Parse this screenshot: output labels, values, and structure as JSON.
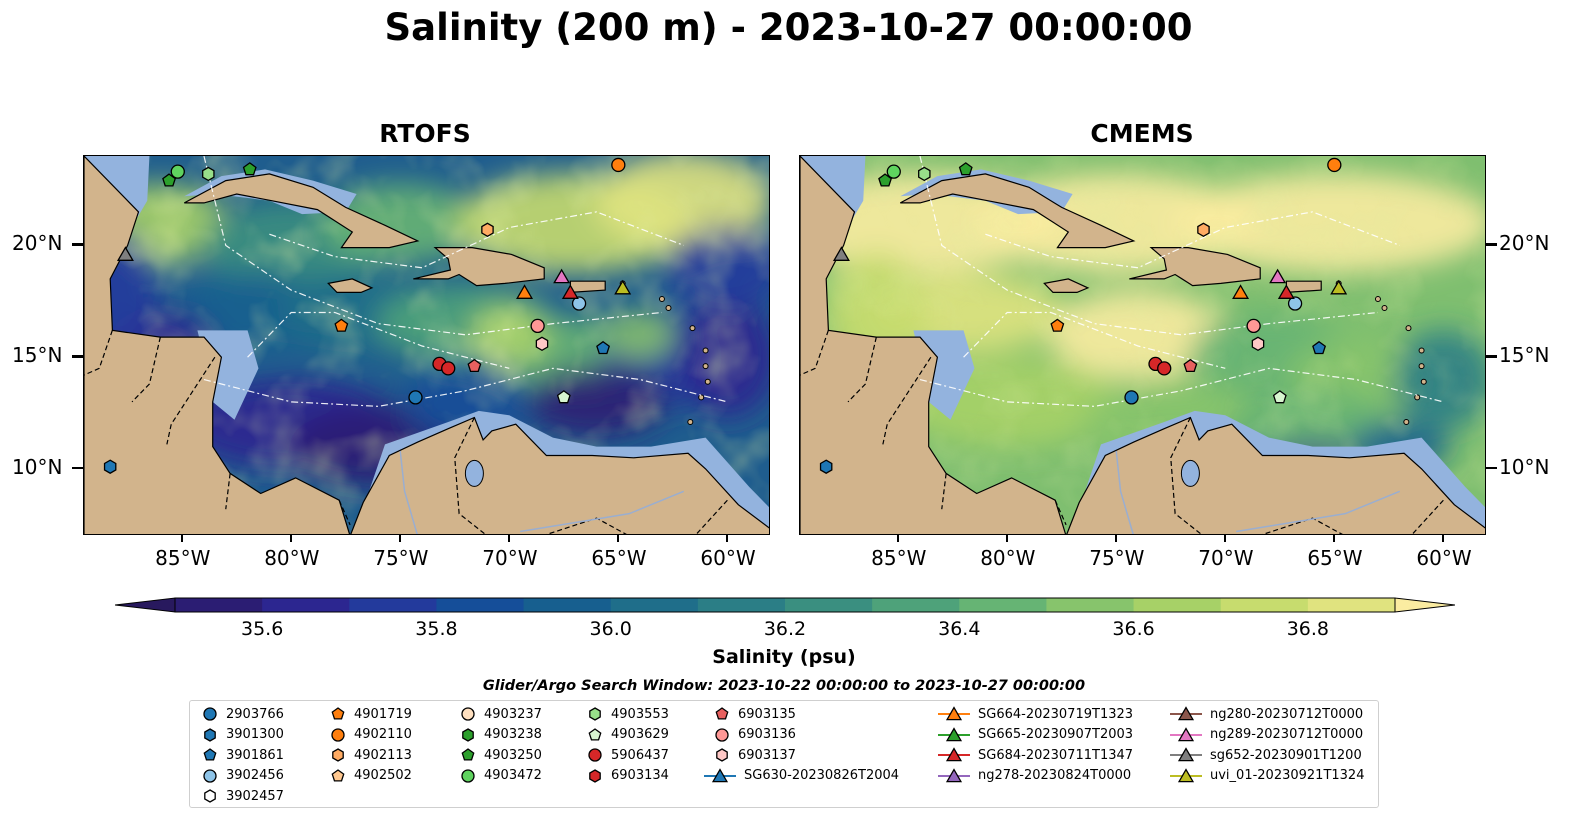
{
  "title": "Salinity (200 m) - 2023-10-27 00:00:00",
  "panels": [
    {
      "title": "RTOFS",
      "variant": "rtofs"
    },
    {
      "title": "CMEMS",
      "variant": "cmems"
    }
  ],
  "axes": {
    "lon_ticks": [
      "85°W",
      "80°W",
      "75°W",
      "70°W",
      "65°W",
      "60°W"
    ],
    "lat_ticks": [
      "20°N",
      "15°N",
      "10°N"
    ],
    "lon_range": [
      -89.5,
      -58.0
    ],
    "lat_range": [
      7.0,
      24.0
    ]
  },
  "colorbar": {
    "label": "Salinity (psu)",
    "ticks": [
      "35.6",
      "35.8",
      "36.0",
      "36.2",
      "36.4",
      "36.6",
      "36.8"
    ],
    "min": 35.5,
    "max": 36.9,
    "colors": [
      "#2b1d73",
      "#2c2690",
      "#233a9c",
      "#154e99",
      "#175f8f",
      "#1f6e8a",
      "#2b7e86",
      "#3a8f80",
      "#4ea27a",
      "#66b474",
      "#87c46c",
      "#a7d167",
      "#c7dc6e",
      "#e0e37f"
    ],
    "over_color": "#fbeca1",
    "under_color": "#28195e"
  },
  "search_window": "Glider/Argo Search Window: 2023-10-22 00:00:00 to 2023-10-27 00:00:00",
  "legend": [
    {
      "label": "2903766",
      "marker": "circle",
      "color": "#1f77b4"
    },
    {
      "label": "3901300",
      "marker": "hexagon",
      "color": "#1f77b4"
    },
    {
      "label": "3901861",
      "marker": "pentagon",
      "color": "#1f77b4"
    },
    {
      "label": "3902456",
      "marker": "circle",
      "color": "#8ec4e8"
    },
    {
      "label": "3902457",
      "marker": "hexagon",
      "color": "#ffffff"
    },
    {
      "label": "4901719",
      "marker": "pentagon",
      "color": "#ff7f0e"
    },
    {
      "label": "4902110",
      "marker": "circle",
      "color": "#ff7f0e"
    },
    {
      "label": "4902113",
      "marker": "hexagon",
      "color": "#ffab63"
    },
    {
      "label": "4902502",
      "marker": "pentagon",
      "color": "#ffc890"
    },
    {
      "label": "4903237",
      "marker": "circle",
      "color": "#ffe0c0"
    },
    {
      "label": "4903238",
      "marker": "hexagon",
      "color": "#2ca02c"
    },
    {
      "label": "4903250",
      "marker": "pentagon",
      "color": "#2ca02c"
    },
    {
      "label": "4903472",
      "marker": "circle",
      "color": "#5fd35f"
    },
    {
      "label": "4903553",
      "marker": "hexagon",
      "color": "#98df8a"
    },
    {
      "label": "4903629",
      "marker": "pentagon",
      "color": "#d8f5d0"
    },
    {
      "label": "5906437",
      "marker": "circle",
      "color": "#d62728"
    },
    {
      "label": "6903134",
      "marker": "hexagon",
      "color": "#d62728"
    },
    {
      "label": "6903135",
      "marker": "pentagon",
      "color": "#e8605f"
    },
    {
      "label": "6903136",
      "marker": "circle",
      "color": "#ff9896"
    },
    {
      "label": "6903137",
      "marker": "hexagon",
      "color": "#ffc8c6"
    },
    {
      "label": "SG630-20230826T2004",
      "marker": "triangle-line",
      "color": "#1f77b4"
    },
    {
      "label": "SG664-20230719T1323",
      "marker": "triangle-line",
      "color": "#ff7f0e"
    },
    {
      "label": "SG665-20230907T2003",
      "marker": "triangle-line",
      "color": "#2ca02c"
    },
    {
      "label": "SG684-20230711T1347",
      "marker": "triangle-line",
      "color": "#d62728"
    },
    {
      "label": "ng278-20230824T0000",
      "marker": "triangle-line",
      "color": "#9467bd"
    },
    {
      "label": "ng280-20230712T0000",
      "marker": "triangle-line",
      "color": "#8c564b"
    },
    {
      "label": "ng289-20230712T0000",
      "marker": "triangle-line",
      "color": "#e377c2"
    },
    {
      "label": "sg652-20230901T1200",
      "marker": "triangle-line",
      "color": "#7f7f7f"
    },
    {
      "label": "uvi_01-20230921T1324",
      "marker": "triangle-line",
      "color": "#bcbd22"
    }
  ],
  "observations": [
    {
      "id": "2903766",
      "lon": -74.3,
      "lat": 13.2
    },
    {
      "id": "3902456",
      "lon": -66.8,
      "lat": 17.4
    },
    {
      "id": "3901861",
      "lon": -65.7,
      "lat": 15.4
    },
    {
      "id": "4901719",
      "lon": -77.7,
      "lat": 16.4
    },
    {
      "id": "4902110",
      "lon": -65.0,
      "lat": 23.6
    },
    {
      "id": "4902113",
      "lon": -71.0,
      "lat": 20.7
    },
    {
      "id": "4903250",
      "lon": -85.6,
      "lat": 22.9
    },
    {
      "id": "4903250",
      "lon": -81.9,
      "lat": 23.4
    },
    {
      "id": "4903472",
      "lon": -85.2,
      "lat": 23.3
    },
    {
      "id": "4903553",
      "lon": -83.8,
      "lat": 23.2
    },
    {
      "id": "4903629",
      "lon": -67.5,
      "lat": 13.2
    },
    {
      "id": "5906437",
      "lon": -73.2,
      "lat": 14.7
    },
    {
      "id": "5906437",
      "lon": -72.8,
      "lat": 14.5
    },
    {
      "id": "6903135",
      "lon": -71.6,
      "lat": 14.6
    },
    {
      "id": "6903136",
      "lon": -68.7,
      "lat": 16.4
    },
    {
      "id": "6903137",
      "lon": -68.5,
      "lat": 15.6
    },
    {
      "id": "3901300",
      "lon": -88.3,
      "lat": 10.1
    },
    {
      "id": "SG664-20230719T1323",
      "lon": -69.3,
      "lat": 17.9
    },
    {
      "id": "SG684-20230711T1347",
      "lon": -67.2,
      "lat": 17.9
    },
    {
      "id": "ng289-20230712T0000",
      "lon": -67.6,
      "lat": 18.6
    },
    {
      "id": "sg652-20230901T1200",
      "lon": -87.6,
      "lat": 19.6
    },
    {
      "id": "uvi_01-20230921T1324",
      "lon": -64.8,
      "lat": 18.1
    }
  ]
}
